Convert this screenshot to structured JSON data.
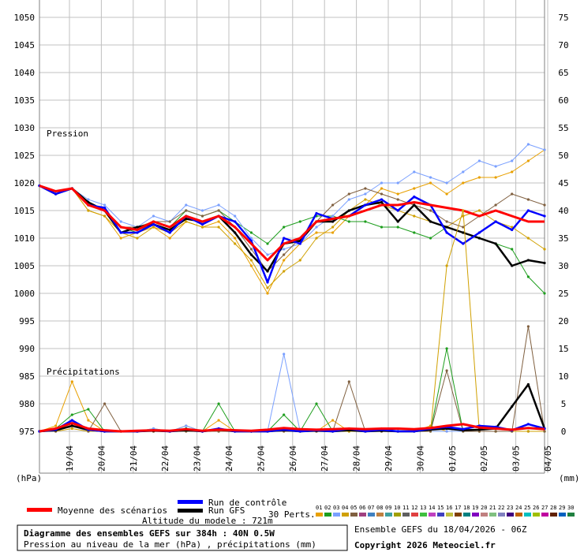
{
  "chart_data": {
    "type": "line",
    "title": "Diagramme des ensembles GEFS sur 384h : 40N 0.5W",
    "subtitle": "Pression au niveau de la mer (hPa) , précipitations (mm)",
    "altitude_label": "Altitude du modele : 721m",
    "ensemble_label": "Ensemble GEFS du 18/04/2026 - 06Z",
    "copyright": "Copyright 2026 Meteociel.fr",
    "pressure_section_label": "Pression",
    "precip_section_label": "Précipitations",
    "left_unit": "(hPa)",
    "right_unit": "(mm)",
    "left_axis": {
      "label": "",
      "min": 975,
      "max": 1050,
      "ticks": [
        "1050",
        "1045",
        "1040",
        "1035",
        "1030",
        "1025",
        "1020",
        "1015",
        "1010",
        "1005",
        "1000",
        "995",
        "990",
        "985",
        "980",
        "975"
      ]
    },
    "right_axis": {
      "label": "",
      "min": 0,
      "max": 75,
      "ticks": [
        "75",
        "70",
        "65",
        "60",
        "55",
        "50",
        "45",
        "40",
        "35",
        "30",
        "25",
        "20",
        "15",
        "10",
        "5",
        "0"
      ]
    },
    "x_categories": [
      "19/04",
      "20/04",
      "21/04",
      "22/04",
      "23/04",
      "24/04",
      "25/04",
      "26/04",
      "27/04",
      "28/04",
      "29/04",
      "30/04",
      "01/05",
      "02/05",
      "03/05",
      "04/05"
    ],
    "grid": true,
    "legend": {
      "mean_label": "Moyenne des scénarios",
      "control_label": "Run de contrôle",
      "gfs_label": "Run GFS",
      "perts_label": "30 Perts.",
      "pert_numbers": [
        "01",
        "02",
        "03",
        "04",
        "05",
        "06",
        "07",
        "08",
        "09",
        "10",
        "11",
        "12",
        "13",
        "14",
        "15",
        "16",
        "17",
        "18",
        "19",
        "20",
        "21",
        "22",
        "23",
        "24",
        "25",
        "26",
        "27",
        "28",
        "29",
        "30"
      ],
      "pert_colors": [
        "#e8a000",
        "#1e9e1e",
        "#7aa0ff",
        "#d0a000",
        "#806040",
        "#a04080",
        "#4080c0",
        "#c08040",
        "#40a0a0",
        "#a0a000",
        "#606060",
        "#e04040",
        "#40c040",
        "#c040c0",
        "#4040c0",
        "#c0c040",
        "#804000",
        "#008080",
        "#8000c0",
        "#c08080",
        "#80c080",
        "#8080c0",
        "#400080",
        "#c06000",
        "#00c0c0",
        "#a0c000",
        "#c000a0",
        "#602000",
        "#0060c0",
        "#208040"
      ],
      "mean_color": "#ff0000",
      "control_color": "#0000ff",
      "gfs_color": "#000000"
    },
    "series_pressure": [
      {
        "name": "Moyenne des scénarios",
        "role": "mean",
        "values": [
          1019.5,
          1018.5,
          1019,
          1016,
          1015,
          1012,
          1011.5,
          1013,
          1012,
          1014,
          1013,
          1014,
          1012,
          1009,
          1006,
          1009,
          1010,
          1013,
          1013.5,
          1014,
          1015,
          1016,
          1016,
          1016.5,
          1016,
          1015.5,
          1015,
          1014,
          1015,
          1014,
          1013,
          1013
        ]
      },
      {
        "name": "Run de contrôle",
        "role": "control",
        "values": [
          1019.5,
          1018,
          1019,
          1016,
          1015.5,
          1011,
          1011,
          1012.5,
          1011,
          1014,
          1012.5,
          1014,
          1013,
          1009.5,
          1002,
          1010,
          1009,
          1014.5,
          1013.5,
          1014,
          1016,
          1017,
          1015,
          1017.5,
          1016,
          1011,
          1009,
          1011,
          1013,
          1011.5,
          1015,
          1014
        ]
      },
      {
        "name": "Run GFS",
        "role": "gfs",
        "values": [
          1019.5,
          1018,
          1019,
          1016.5,
          1015,
          1011,
          1012,
          1012.5,
          1011.5,
          1013.5,
          1013,
          1014,
          1011,
          1007,
          1004,
          1009,
          1009.5,
          1013,
          1013,
          1015,
          1016,
          1016.5,
          1013,
          1016,
          1013,
          1012,
          1011,
          1010,
          1009,
          1005,
          1006,
          1005.5
        ]
      },
      {
        "name": "01",
        "role": "member",
        "values": [
          1019.5,
          1018,
          1019,
          1015,
          1014,
          1010,
          1011,
          1012,
          1010,
          1013,
          1012,
          1013,
          1010,
          1005,
          1000,
          1006,
          1009,
          1011,
          1011,
          1014,
          1016,
          1019,
          1018,
          1019,
          1020,
          1018,
          1020,
          1021,
          1021,
          1022,
          1024,
          1026
        ]
      },
      {
        "name": "02",
        "role": "member",
        "values": [
          1019.5,
          1018,
          1019,
          1016,
          1015,
          1012,
          1011,
          1013,
          1012,
          1015,
          1014,
          1015,
          1013,
          1011,
          1009,
          1012,
          1013,
          1014,
          1014,
          1013,
          1013,
          1012,
          1012,
          1011,
          1010,
          1012,
          1011,
          1010,
          1009,
          1008,
          1003,
          1000
        ]
      },
      {
        "name": "03",
        "role": "member",
        "values": [
          1019.5,
          1018,
          1019,
          1017,
          1016,
          1013,
          1012,
          1014,
          1013,
          1016,
          1015,
          1016,
          1014,
          1010,
          1007,
          1008,
          1009,
          1012,
          1014,
          1017,
          1018,
          1020,
          1020,
          1022,
          1021,
          1020,
          1022,
          1024,
          1023,
          1024,
          1027,
          1026
        ]
      },
      {
        "name": "04",
        "role": "member",
        "values": [
          1019.5,
          1018,
          1019,
          1015,
          1014,
          1011,
          1010,
          1012,
          1011,
          1013,
          1012,
          1012,
          1009,
          1006,
          1001,
          1004,
          1006,
          1010,
          1012,
          1015,
          1017,
          1016,
          1015,
          1014,
          1013,
          1012,
          1014,
          1015,
          1013,
          1012,
          1010,
          1008
        ]
      },
      {
        "name": "05",
        "role": "member",
        "values": [
          1019.5,
          1018,
          1019,
          1016,
          1015,
          1012,
          1012,
          1013,
          1013,
          1015,
          1014,
          1015,
          1012,
          1008,
          1004,
          1007,
          1010,
          1013,
          1016,
          1018,
          1019,
          1018,
          1017,
          1016,
          1015,
          1013,
          1012,
          1014,
          1016,
          1018,
          1017,
          1016
        ]
      }
    ],
    "series_precip": [
      {
        "name": "Moyenne des scénarios",
        "role": "mean",
        "values": [
          0,
          0.5,
          1.5,
          0.5,
          0.2,
          0,
          0.1,
          0.2,
          0.1,
          0.4,
          0.1,
          0.3,
          0.2,
          0.1,
          0.3,
          0.6,
          0.4,
          0.3,
          0.4,
          0.5,
          0.4,
          0.5,
          0.5,
          0.4,
          0.6,
          1.0,
          1.3,
          0.7,
          0.5,
          0.3,
          0.6,
          0.4
        ]
      },
      {
        "name": "Run de contrôle",
        "role": "control",
        "values": [
          0,
          0.3,
          2,
          0.3,
          0,
          0,
          0,
          0.2,
          0,
          0.4,
          0,
          0.5,
          0,
          0,
          0,
          0.3,
          0,
          0.2,
          0,
          0.5,
          0,
          0.3,
          0,
          0,
          0.5,
          0.8,
          0.4,
          1.0,
          0.8,
          0.2,
          1.3,
          0.5
        ]
      },
      {
        "name": "Run GFS",
        "role": "gfs",
        "values": [
          0,
          0.2,
          1,
          0.3,
          0,
          0,
          0,
          0.1,
          0,
          0.2,
          0,
          0.3,
          0,
          0,
          0,
          0.2,
          0,
          0.1,
          0,
          0.2,
          0,
          0.1,
          0,
          0,
          0.3,
          0.5,
          0.2,
          0.3,
          0.5,
          4.5,
          8.5,
          0.5
        ]
      },
      {
        "name": "01",
        "role": "member",
        "values": [
          0,
          1,
          9,
          2,
          0,
          0,
          0,
          0.5,
          0,
          1,
          0,
          2,
          0,
          0,
          0,
          0.5,
          0,
          0,
          2,
          0,
          0,
          0.5,
          0,
          0,
          1,
          0,
          0,
          0,
          0,
          0,
          0,
          0
        ]
      },
      {
        "name": "02",
        "role": "member",
        "values": [
          0,
          0.5,
          3,
          4,
          0,
          0,
          0,
          0,
          0,
          0.5,
          0,
          5,
          0,
          0,
          0,
          3,
          0,
          5,
          0,
          0,
          0,
          0,
          0,
          0,
          0,
          15,
          0,
          0,
          0,
          0,
          0,
          0
        ]
      },
      {
        "name": "03",
        "role": "member",
        "values": [
          0,
          0,
          1,
          0,
          0,
          0,
          0,
          0.5,
          0,
          1,
          0,
          0,
          0,
          0,
          0,
          14,
          0,
          0,
          0,
          0,
          0,
          0,
          0,
          0,
          0,
          0,
          0,
          0,
          0,
          0,
          0,
          0
        ]
      },
      {
        "name": "04",
        "role": "member",
        "values": [
          0,
          0,
          0.5,
          0,
          0,
          0,
          0,
          0,
          0,
          0,
          0,
          0,
          0,
          0,
          0,
          0,
          0,
          0,
          0,
          0,
          0,
          0,
          0,
          0,
          0,
          30,
          40,
          0,
          0,
          0,
          0,
          0
        ]
      },
      {
        "name": "05",
        "role": "member",
        "values": [
          0,
          0,
          2,
          0,
          5,
          0,
          0,
          0,
          0,
          0,
          0,
          0,
          0,
          0,
          0,
          0,
          0,
          0,
          0,
          9,
          0,
          0,
          0,
          0,
          0,
          11,
          0,
          0,
          0,
          0,
          19,
          0
        ]
      }
    ]
  }
}
